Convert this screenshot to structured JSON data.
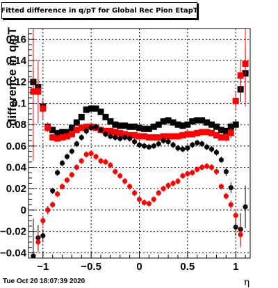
{
  "chart_data": {
    "type": "scatter",
    "title": "Fitted difference in q/pT for Global Rec Pion EtapT",
    "xlabel": "η",
    "ylabel": "difference in q/pT",
    "xlim": [
      -1.15,
      1.15
    ],
    "ylim": [
      -0.045,
      0.17
    ],
    "x_ticks": [
      -1,
      -0.5,
      0,
      0.5,
      1
    ],
    "x_tick_labels": [
      "−1",
      "−0.5",
      "0",
      "0.5",
      "1"
    ],
    "y_ticks": [
      -0.04,
      -0.02,
      0,
      0.02,
      0.04,
      0.06,
      0.08,
      0.1,
      0.12,
      0.14,
      0.16
    ],
    "y_tick_labels": [
      "−0.04",
      "−0.02",
      "0",
      "0.02",
      "0.04",
      "0.06",
      "0.08",
      "0.1",
      "0.12",
      "0.14",
      "0.16"
    ],
    "grid": true,
    "series": [
      {
        "marker": "square",
        "color": "#000000",
        "x": [
          -1.1,
          -1.05,
          -1.0,
          -0.95,
          -0.9,
          -0.85,
          -0.8,
          -0.75,
          -0.7,
          -0.65,
          -0.6,
          -0.55,
          -0.5,
          -0.45,
          -0.4,
          -0.35,
          -0.3,
          -0.25,
          -0.2,
          -0.15,
          -0.1,
          -0.05,
          0.0,
          0.05,
          0.1,
          0.15,
          0.2,
          0.25,
          0.3,
          0.35,
          0.4,
          0.45,
          0.5,
          0.55,
          0.6,
          0.65,
          0.7,
          0.75,
          0.8,
          0.85,
          0.9,
          0.95,
          1.0,
          1.05,
          1.1
        ],
        "y": [
          0.12,
          0.115,
          0.097,
          0.078,
          0.075,
          0.072,
          0.073,
          0.073,
          0.077,
          0.082,
          0.087,
          0.094,
          0.095,
          0.095,
          0.092,
          0.087,
          0.083,
          0.08,
          0.079,
          0.079,
          0.078,
          0.078,
          0.077,
          0.076,
          0.076,
          0.078,
          0.08,
          0.083,
          0.084,
          0.082,
          0.08,
          0.079,
          0.08,
          0.083,
          0.084,
          0.084,
          0.082,
          0.08,
          0.078,
          0.075,
          0.074,
          0.078,
          0.08,
          0.113,
          0.128
        ],
        "err": [
          0.012,
          0.008,
          0.005,
          0.004,
          0.003,
          0.003,
          0.003,
          0.003,
          0.003,
          0.003,
          0.003,
          0.003,
          0.003,
          0.003,
          0.003,
          0.003,
          0.003,
          0.003,
          0.003,
          0.003,
          0.003,
          0.003,
          0.003,
          0.003,
          0.003,
          0.003,
          0.003,
          0.003,
          0.003,
          0.003,
          0.003,
          0.003,
          0.003,
          0.003,
          0.003,
          0.003,
          0.003,
          0.003,
          0.003,
          0.003,
          0.003,
          0.004,
          0.005,
          0.012,
          0.025
        ]
      },
      {
        "marker": "square",
        "color": "#ff0000",
        "x": [
          -1.1,
          -1.05,
          -1.0,
          -0.95,
          -0.9,
          -0.85,
          -0.8,
          -0.75,
          -0.7,
          -0.65,
          -0.6,
          -0.55,
          -0.5,
          -0.45,
          -0.4,
          -0.35,
          -0.3,
          -0.25,
          -0.2,
          -0.15,
          -0.1,
          -0.05,
          0.0,
          0.05,
          0.1,
          0.15,
          0.2,
          0.25,
          0.3,
          0.35,
          0.4,
          0.45,
          0.5,
          0.55,
          0.6,
          0.65,
          0.7,
          0.75,
          0.8,
          0.85,
          0.9,
          0.95,
          1.0,
          1.05,
          1.1
        ],
        "y": [
          0.111,
          0.111,
          0.095,
          0.077,
          0.068,
          0.067,
          0.068,
          0.069,
          0.071,
          0.075,
          0.077,
          0.078,
          0.078,
          0.077,
          0.075,
          0.074,
          0.074,
          0.073,
          0.072,
          0.071,
          0.07,
          0.07,
          0.069,
          0.069,
          0.068,
          0.068,
          0.068,
          0.069,
          0.069,
          0.069,
          0.069,
          0.07,
          0.071,
          0.071,
          0.072,
          0.073,
          0.073,
          0.072,
          0.07,
          0.068,
          0.068,
          0.072,
          0.102,
          0.126,
          0.137
        ],
        "err": [
          0.065,
          0.03,
          0.01,
          0.004,
          0.003,
          0.003,
          0.003,
          0.003,
          0.003,
          0.003,
          0.003,
          0.003,
          0.003,
          0.003,
          0.003,
          0.003,
          0.003,
          0.003,
          0.003,
          0.003,
          0.003,
          0.003,
          0.003,
          0.003,
          0.003,
          0.003,
          0.003,
          0.003,
          0.003,
          0.003,
          0.003,
          0.003,
          0.003,
          0.003,
          0.003,
          0.003,
          0.003,
          0.003,
          0.003,
          0.003,
          0.004,
          0.005,
          0.009,
          0.015,
          0.04
        ]
      },
      {
        "marker": "circle",
        "color": "#000000",
        "x": [
          -1.1,
          -1.05,
          -1.0,
          -0.95,
          -0.9,
          -0.85,
          -0.8,
          -0.75,
          -0.7,
          -0.65,
          -0.6,
          -0.55,
          -0.5,
          -0.45,
          -0.4,
          -0.35,
          -0.3,
          -0.25,
          -0.2,
          -0.15,
          -0.1,
          -0.05,
          0.0,
          0.05,
          0.1,
          0.15,
          0.2,
          0.25,
          0.3,
          0.35,
          0.4,
          0.45,
          0.5,
          0.55,
          0.6,
          0.65,
          0.7,
          0.75,
          0.8,
          0.85,
          0.9,
          0.95,
          1.0,
          1.05,
          1.1
        ],
        "y": [
          -0.043,
          -0.026,
          -0.024,
          0.0,
          0.018,
          0.035,
          0.044,
          0.05,
          0.055,
          0.062,
          0.068,
          0.074,
          0.077,
          0.078,
          0.075,
          0.071,
          0.069,
          0.068,
          0.067,
          0.068,
          0.067,
          0.064,
          0.061,
          0.06,
          0.059,
          0.06,
          0.062,
          0.065,
          0.064,
          0.061,
          0.058,
          0.057,
          0.058,
          0.061,
          0.063,
          0.062,
          0.059,
          0.057,
          0.054,
          0.047,
          0.036,
          0.021,
          -0.016,
          -0.018,
          0.003
        ],
        "err": [
          0.035,
          0.012,
          0.006,
          0.004,
          0.003,
          0.003,
          0.003,
          0.003,
          0.003,
          0.003,
          0.003,
          0.003,
          0.003,
          0.003,
          0.003,
          0.003,
          0.003,
          0.003,
          0.003,
          0.003,
          0.003,
          0.003,
          0.003,
          0.003,
          0.003,
          0.003,
          0.003,
          0.003,
          0.003,
          0.003,
          0.003,
          0.003,
          0.003,
          0.003,
          0.003,
          0.003,
          0.003,
          0.003,
          0.003,
          0.003,
          0.004,
          0.005,
          0.008,
          0.015,
          0.02
        ]
      },
      {
        "marker": "circle",
        "color": "#ff0000",
        "x": [
          -1.05,
          -1.0,
          -0.95,
          -0.9,
          -0.85,
          -0.8,
          -0.75,
          -0.7,
          -0.65,
          -0.6,
          -0.55,
          -0.5,
          -0.45,
          -0.4,
          -0.35,
          -0.3,
          -0.25,
          -0.2,
          -0.15,
          -0.1,
          -0.05,
          0.0,
          0.05,
          0.1,
          0.15,
          0.2,
          0.25,
          0.3,
          0.35,
          0.4,
          0.45,
          0.5,
          0.55,
          0.6,
          0.65,
          0.7,
          0.75,
          0.8,
          0.85,
          0.9,
          0.95,
          1.0,
          1.05
        ],
        "y": [
          -0.03,
          -0.01,
          0.0,
          0.005,
          0.015,
          0.022,
          0.028,
          0.033,
          0.04,
          0.046,
          0.052,
          0.053,
          0.05,
          0.046,
          0.045,
          0.042,
          0.036,
          0.032,
          0.027,
          0.022,
          0.016,
          0.01,
          0.007,
          0.006,
          0.01,
          0.016,
          0.02,
          0.023,
          0.025,
          0.027,
          0.032,
          0.034,
          0.035,
          0.038,
          0.04,
          0.041,
          0.04,
          0.036,
          0.022,
          0.013,
          0.005,
          -0.005,
          -0.023
        ],
        "err": [
          0.01,
          0.005,
          0.004,
          0.003,
          0.003,
          0.003,
          0.003,
          0.003,
          0.003,
          0.003,
          0.003,
          0.003,
          0.003,
          0.003,
          0.003,
          0.003,
          0.003,
          0.003,
          0.003,
          0.003,
          0.003,
          0.003,
          0.003,
          0.003,
          0.003,
          0.003,
          0.003,
          0.003,
          0.003,
          0.003,
          0.003,
          0.003,
          0.003,
          0.003,
          0.003,
          0.003,
          0.003,
          0.003,
          0.003,
          0.003,
          0.004,
          0.006,
          0.012
        ]
      }
    ]
  },
  "footer": {
    "datestamp": "Tue Oct 20 18:07:39 2020"
  }
}
